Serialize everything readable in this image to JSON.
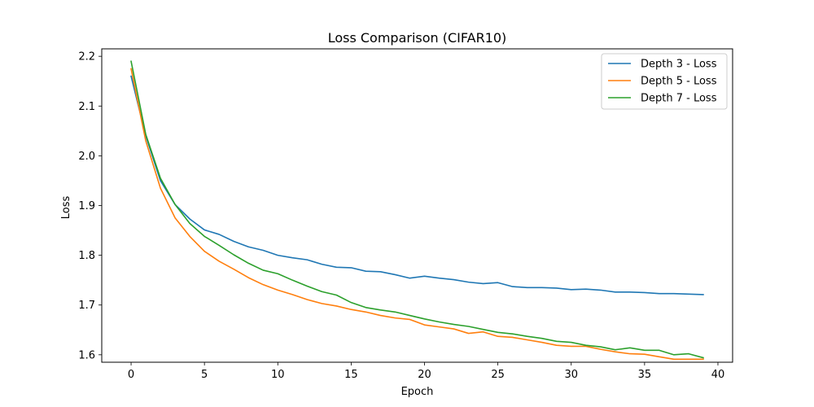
{
  "chart_data": {
    "type": "line",
    "title": "Loss Comparison (CIFAR10)",
    "xlabel": "Epoch",
    "ylabel": "Loss",
    "xlim": [
      -2,
      41
    ],
    "ylim": [
      1.585,
      2.215
    ],
    "xticks": [
      0,
      5,
      10,
      15,
      20,
      25,
      30,
      35,
      40
    ],
    "yticks": [
      1.6,
      1.7,
      1.8,
      1.9,
      2.0,
      2.1,
      2.2
    ],
    "grid": false,
    "legend": "top-right",
    "x": [
      0,
      1,
      2,
      3,
      4,
      5,
      6,
      7,
      8,
      9,
      10,
      11,
      12,
      13,
      14,
      15,
      16,
      17,
      18,
      19,
      20,
      21,
      22,
      23,
      24,
      25,
      26,
      27,
      28,
      29,
      30,
      31,
      32,
      33,
      34,
      35,
      36,
      37,
      38,
      39
    ],
    "series": [
      {
        "name": "Depth 3 - Loss",
        "color": "#1f77b4",
        "values": [
          2.16,
          2.04,
          1.95,
          1.902,
          1.873,
          1.851,
          1.842,
          1.828,
          1.817,
          1.81,
          1.8,
          1.795,
          1.791,
          1.782,
          1.776,
          1.775,
          1.768,
          1.767,
          1.761,
          1.754,
          1.758,
          1.754,
          1.751,
          1.746,
          1.743,
          1.745,
          1.737,
          1.735,
          1.735,
          1.734,
          1.731,
          1.732,
          1.73,
          1.726,
          1.726,
          1.725,
          1.723,
          1.723,
          1.722,
          1.721
        ]
      },
      {
        "name": "Depth 5 - Loss",
        "color": "#ff7f0e",
        "values": [
          2.175,
          2.03,
          1.935,
          1.875,
          1.838,
          1.808,
          1.788,
          1.772,
          1.755,
          1.741,
          1.73,
          1.721,
          1.711,
          1.703,
          1.698,
          1.691,
          1.686,
          1.679,
          1.674,
          1.671,
          1.66,
          1.656,
          1.652,
          1.643,
          1.646,
          1.637,
          1.635,
          1.63,
          1.625,
          1.619,
          1.617,
          1.617,
          1.611,
          1.606,
          1.602,
          1.601,
          1.596,
          1.591,
          1.591,
          1.591
        ]
      },
      {
        "name": "Depth 7 - Loss",
        "color": "#2ca02c",
        "values": [
          2.19,
          2.043,
          1.955,
          1.902,
          1.864,
          1.838,
          1.82,
          1.801,
          1.784,
          1.77,
          1.763,
          1.75,
          1.738,
          1.727,
          1.72,
          1.705,
          1.695,
          1.69,
          1.686,
          1.679,
          1.672,
          1.666,
          1.661,
          1.657,
          1.651,
          1.645,
          1.642,
          1.637,
          1.633,
          1.627,
          1.625,
          1.619,
          1.616,
          1.61,
          1.614,
          1.609,
          1.609,
          1.6,
          1.602,
          1.594
        ]
      }
    ]
  }
}
